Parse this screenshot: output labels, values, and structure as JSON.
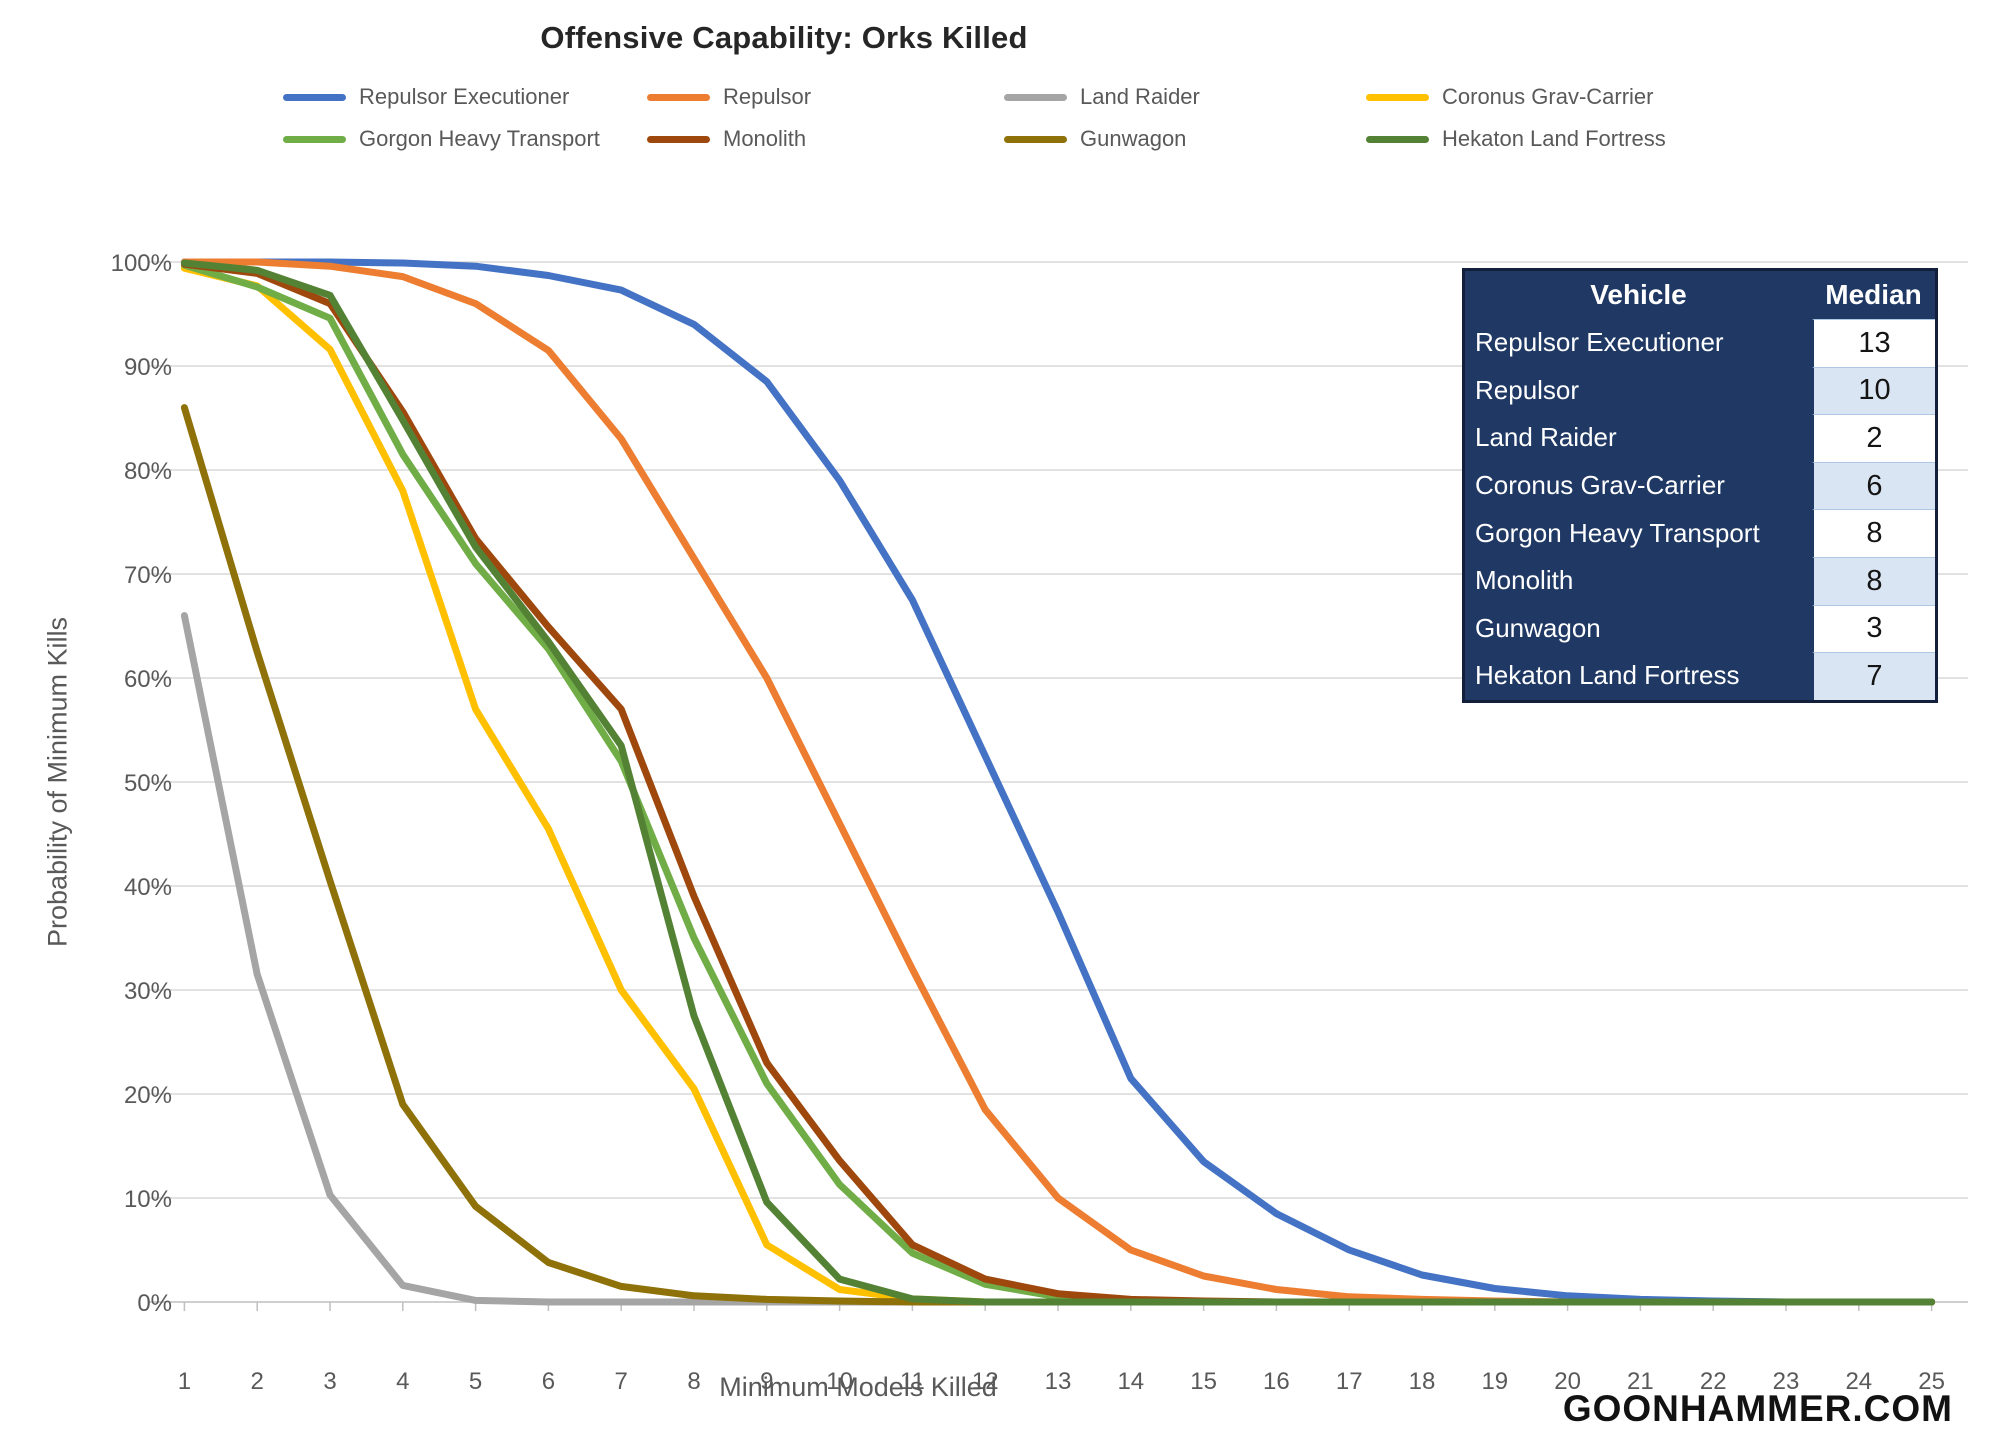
{
  "title": "Offensive Capability: Orks Killed",
  "watermark": "GOONHAMMER.COM",
  "colors": {
    "background": "#FFFFFF",
    "title_text": "#262626",
    "muted_text": "#595959",
    "gridline": "#D9D9D9",
    "axis_line": "#BFBFBF",
    "table_navy": "#1F3864",
    "table_stripe": "#D9E5F2",
    "table_border": "#13203C",
    "watermark_text": "#121212"
  },
  "axes": {
    "y_title": "Probability of Minimum Kills",
    "x_title": "Minimum Models Killed",
    "y_ticks": [
      "0%",
      "10%",
      "20%",
      "30%",
      "40%",
      "50%",
      "60%",
      "70%",
      "80%",
      "90%",
      "100%"
    ],
    "x_ticks": [
      "1",
      "2",
      "3",
      "4",
      "5",
      "6",
      "7",
      "8",
      "9",
      "10",
      "11",
      "12",
      "13",
      "14",
      "15",
      "16",
      "17",
      "18",
      "19",
      "20",
      "21",
      "22",
      "23",
      "24",
      "25"
    ]
  },
  "table": {
    "headers": [
      "Vehicle",
      "Median"
    ],
    "rows": [
      {
        "vehicle": "Repulsor Executioner",
        "median": "13"
      },
      {
        "vehicle": "Repulsor",
        "median": "10"
      },
      {
        "vehicle": "Land Raider",
        "median": "2"
      },
      {
        "vehicle": "Coronus Grav-Carrier",
        "median": "6"
      },
      {
        "vehicle": "Gorgon Heavy Transport",
        "median": "8"
      },
      {
        "vehicle": "Monolith",
        "median": "8"
      },
      {
        "vehicle": "Gunwagon",
        "median": "3"
      },
      {
        "vehicle": "Hekaton Land Fortress",
        "median": "7"
      }
    ]
  },
  "chart_data": {
    "type": "line",
    "title": "Offensive Capability: Orks Killed",
    "xlabel": "Minimum Models Killed",
    "ylabel": "Probability of Minimum Kills",
    "x": [
      1,
      2,
      3,
      4,
      5,
      6,
      7,
      8,
      9,
      10,
      11,
      12,
      13,
      14,
      15,
      16,
      17,
      18,
      19,
      20,
      21,
      22,
      23,
      24,
      25
    ],
    "xlim": [
      1,
      25
    ],
    "ylim": [
      0,
      100
    ],
    "y_unit": "percent",
    "grid": true,
    "legend_position": "top",
    "series": [
      {
        "name": "Repulsor Executioner",
        "color": "#4472C4",
        "values": [
          100,
          100,
          100,
          99.9,
          99.6,
          98.7,
          97.3,
          94,
          88.5,
          79,
          67.5,
          52.5,
          37.5,
          21.5,
          13.5,
          8.5,
          5,
          2.6,
          1.3,
          0.6,
          0.25,
          0.1,
          0,
          0,
          0
        ]
      },
      {
        "name": "Repulsor",
        "color": "#ED7D31",
        "values": [
          100,
          100,
          99.6,
          98.6,
          96,
          91.5,
          83,
          71.5,
          60,
          46,
          32,
          18.5,
          10,
          5,
          2.5,
          1.2,
          0.5,
          0.25,
          0.1,
          0,
          0,
          0,
          0,
          0,
          0
        ]
      },
      {
        "name": "Land Raider",
        "color": "#A5A5A5",
        "values": [
          66,
          31.5,
          10.3,
          1.6,
          0.15,
          0,
          0,
          0,
          0,
          0,
          0,
          0,
          0,
          0,
          0,
          0,
          0,
          0,
          0,
          0,
          0,
          0,
          0,
          0,
          0
        ]
      },
      {
        "name": "Coronus Grav-Carrier",
        "color": "#FFC000",
        "values": [
          99.4,
          97.7,
          91.6,
          78,
          57,
          45.5,
          30,
          20.5,
          5.5,
          1.2,
          0.3,
          0,
          0,
          0,
          0,
          0,
          0,
          0,
          0,
          0,
          0,
          0,
          0,
          0,
          0
        ]
      },
      {
        "name": "Gorgon Heavy Transport",
        "color": "#70AD47",
        "values": [
          99.7,
          97.6,
          94.6,
          81.5,
          71,
          62.8,
          52,
          35,
          21,
          11.3,
          4.7,
          1.7,
          0.5,
          0.15,
          0,
          0,
          0,
          0,
          0,
          0,
          0,
          0,
          0,
          0,
          0
        ]
      },
      {
        "name": "Monolith",
        "color": "#9E480E",
        "values": [
          99.8,
          98.9,
          96,
          85.6,
          73.4,
          64.9,
          57,
          39,
          23,
          13.6,
          5.5,
          2.2,
          0.8,
          0.25,
          0.1,
          0,
          0,
          0,
          0,
          0,
          0,
          0,
          0,
          0,
          0
        ]
      },
      {
        "name": "Gunwagon",
        "color": "#8E7108",
        "values": [
          86,
          62.5,
          40.5,
          19,
          9.2,
          3.8,
          1.5,
          0.6,
          0.25,
          0.1,
          0,
          0,
          0,
          0,
          0,
          0,
          0,
          0,
          0,
          0,
          0,
          0,
          0,
          0,
          0
        ]
      },
      {
        "name": "Hekaton Land Fortress",
        "color": "#548235",
        "values": [
          99.9,
          99.2,
          96.8,
          84.8,
          72.6,
          63.5,
          53.5,
          27.5,
          9.6,
          2.2,
          0.3,
          0,
          0,
          0,
          0,
          0,
          0,
          0,
          0,
          0,
          0,
          0,
          0,
          0,
          0
        ]
      }
    ]
  }
}
